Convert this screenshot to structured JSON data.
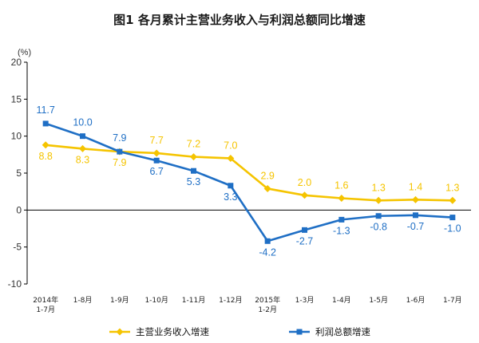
{
  "chart_data": {
    "type": "line",
    "title": "图1 各月累计主营业务收入与利润总额同比增速",
    "unit_label": "(%)",
    "ylim": [
      -10,
      20
    ],
    "yticks": [
      20,
      15,
      10,
      5,
      0,
      -5,
      -10
    ],
    "grid": false,
    "legend_position": "bottom",
    "categories": [
      [
        "2014年",
        "1-7月"
      ],
      [
        "1-8月"
      ],
      [
        "1-9月"
      ],
      [
        "1-10月"
      ],
      [
        "1-11月"
      ],
      [
        "1-12月"
      ],
      [
        "2015年",
        "1-2月"
      ],
      [
        "1-3月"
      ],
      [
        "1-4月"
      ],
      [
        "1-5月"
      ],
      [
        "1-6月"
      ],
      [
        "1-7月"
      ]
    ],
    "series": [
      {
        "name": "主营业务收入增速",
        "color": "#F5C400",
        "marker": "diamond",
        "values": [
          8.8,
          8.3,
          7.9,
          7.7,
          7.2,
          7.0,
          2.9,
          2.0,
          1.6,
          1.3,
          1.4,
          1.3
        ],
        "labels": [
          "8.8",
          "8.3",
          "7.9",
          "7.7",
          "7.2",
          "7.0",
          "2.9",
          "2.0",
          "1.6",
          "1.3",
          "1.4",
          "1.3"
        ]
      },
      {
        "name": "利润总额增速",
        "color": "#1F6FC5",
        "marker": "square",
        "values": [
          11.7,
          10.0,
          7.9,
          6.7,
          5.3,
          3.3,
          -4.2,
          -2.7,
          -1.3,
          -0.8,
          -0.7,
          -1.0
        ],
        "labels": [
          "11.7",
          "10.0",
          "7.9",
          "6.7",
          "5.3",
          "3.3",
          "-4.2",
          "-2.7",
          "-1.3",
          "-0.8",
          "-0.7",
          "-1.0"
        ]
      }
    ]
  }
}
